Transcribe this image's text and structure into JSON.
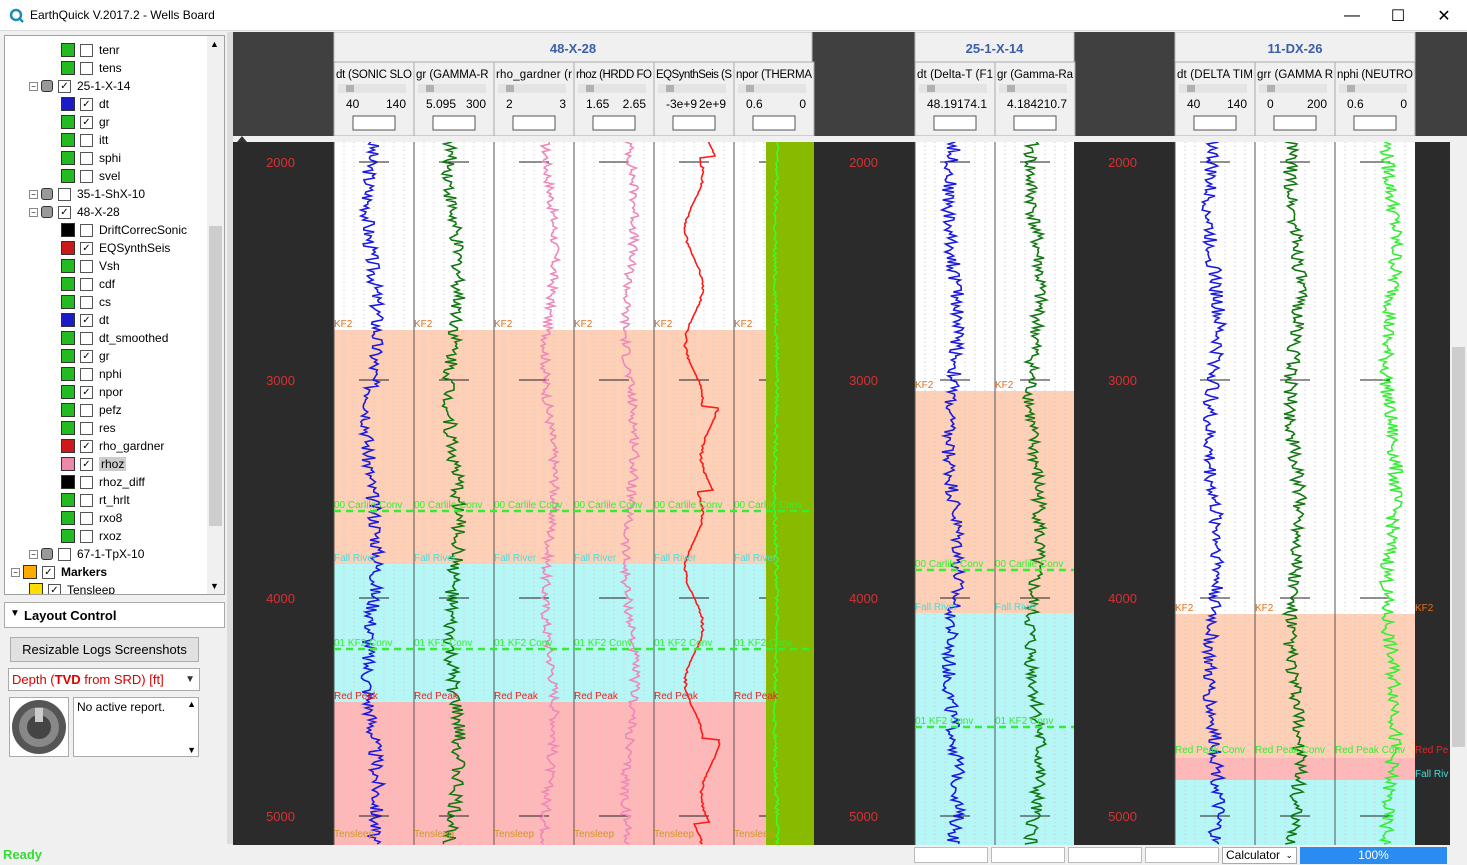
{
  "app": {
    "title": "EarthQuick V.2017.2 - Wells Board"
  },
  "window_controls": {
    "minimize": "—",
    "maximize": "☐",
    "close": "✕"
  },
  "tree": {
    "items": [
      {
        "label": "tenr",
        "checked": false,
        "color": "#22bb22",
        "indent": 3
      },
      {
        "label": "tens",
        "checked": false,
        "color": "#22bb22",
        "indent": 3
      },
      {
        "label": "25-1-X-14",
        "checked": true,
        "color": "#999999",
        "indent": 2,
        "well": true
      },
      {
        "label": "dt",
        "checked": true,
        "color": "#1a1ac8",
        "indent": 3
      },
      {
        "label": "gr",
        "checked": true,
        "color": "#22bb22",
        "indent": 3
      },
      {
        "label": "itt",
        "checked": false,
        "color": "#22bb22",
        "indent": 3
      },
      {
        "label": "sphi",
        "checked": false,
        "color": "#22bb22",
        "indent": 3
      },
      {
        "label": "svel",
        "checked": false,
        "color": "#22bb22",
        "indent": 3
      },
      {
        "label": "35-1-ShX-10",
        "checked": false,
        "color": "#999999",
        "indent": 2,
        "well": true
      },
      {
        "label": "48-X-28",
        "checked": true,
        "color": "#999999",
        "indent": 2,
        "well": true
      },
      {
        "label": "DriftCorrecSonic",
        "checked": false,
        "color": "#000000",
        "indent": 3
      },
      {
        "label": "EQSynthSeis",
        "checked": true,
        "color": "#cc1a1a",
        "indent": 3
      },
      {
        "label": "Vsh",
        "checked": false,
        "color": "#22bb22",
        "indent": 3
      },
      {
        "label": "cdf",
        "checked": false,
        "color": "#22bb22",
        "indent": 3
      },
      {
        "label": "cs",
        "checked": false,
        "color": "#22bb22",
        "indent": 3
      },
      {
        "label": "dt",
        "checked": true,
        "color": "#1a1ac8",
        "indent": 3
      },
      {
        "label": "dt_smoothed",
        "checked": false,
        "color": "#22bb22",
        "indent": 3
      },
      {
        "label": "gr",
        "checked": true,
        "color": "#22bb22",
        "indent": 3
      },
      {
        "label": "nphi",
        "checked": false,
        "color": "#22bb22",
        "indent": 3
      },
      {
        "label": "npor",
        "checked": true,
        "color": "#22bb22",
        "indent": 3
      },
      {
        "label": "pefz",
        "checked": false,
        "color": "#22bb22",
        "indent": 3
      },
      {
        "label": "res",
        "checked": false,
        "color": "#22bb22",
        "indent": 3
      },
      {
        "label": "rho_gardner",
        "checked": true,
        "color": "#cc1a1a",
        "indent": 3
      },
      {
        "label": "rhoz",
        "checked": true,
        "color": "#ee88aa",
        "indent": 3,
        "selected": true
      },
      {
        "label": "rhoz_diff",
        "checked": false,
        "color": "#000000",
        "indent": 3
      },
      {
        "label": "rt_hrlt",
        "checked": false,
        "color": "#22bb22",
        "indent": 3
      },
      {
        "label": "rxo8",
        "checked": false,
        "color": "#22bb22",
        "indent": 3
      },
      {
        "label": "rxoz",
        "checked": false,
        "color": "#22bb22",
        "indent": 3
      },
      {
        "label": "67-1-TpX-10",
        "checked": false,
        "color": "#999999",
        "indent": 2,
        "well": true
      },
      {
        "label": "Markers",
        "checked": true,
        "color": "#ffaa00",
        "indent": 1,
        "bold": true
      },
      {
        "label": "Tensleep",
        "checked": true,
        "color": "#ffdd00",
        "indent": 2
      }
    ]
  },
  "layout_control": {
    "title": "Layout Control",
    "button": "Resizable Logs Screenshots",
    "depth_prefix": "Depth (",
    "depth_bold": "TVD",
    "depth_suffix": " from SRD) [ft]",
    "report": "No active report."
  },
  "status": {
    "text": "Ready",
    "calculator": "Calculator",
    "zoom": "100%"
  },
  "depth_ticks": [
    "2000",
    "3000",
    "4000",
    "5000"
  ],
  "wells": [
    {
      "name": "48-X-28",
      "curves": [
        {
          "name": "dt (SONIC SLO",
          "min": "40",
          "max": "140"
        },
        {
          "name": "gr (GAMMA-R",
          "min": "5.095",
          "max": "300"
        },
        {
          "name": "rho_gardner (r",
          "min": "2",
          "max": "3"
        },
        {
          "name": "rhoz (HRDD FO",
          "min": "1.65",
          "max": "2.65"
        },
        {
          "name": "EQSynthSeis (S",
          "min": "-3e+9",
          "max": "2e+9"
        },
        {
          "name": "npor (THERMA",
          "min": "0.6",
          "max": "0"
        }
      ]
    },
    {
      "name": "25-1-X-14",
      "curves": [
        {
          "name": "dt (Delta-T (F1",
          "min": "48.19",
          "max": "174.1"
        },
        {
          "name": "gr (Gamma-Ra",
          "min": "4.184",
          "max": "210.7"
        }
      ]
    },
    {
      "name": "11-DX-26",
      "curves": [
        {
          "name": "dt (DELTA TIM",
          "min": "40",
          "max": "140"
        },
        {
          "name": "grr (GAMMA R",
          "min": "0",
          "max": "200"
        },
        {
          "name": "nphi (NEUTRO",
          "min": "0.6",
          "max": "0"
        }
      ]
    }
  ],
  "markers": {
    "kf2": "KF2",
    "carlile": "00 Carlile Conv",
    "fall_river": "Fall River",
    "kf2_conv": "01 KF2 Conv",
    "red_peak": "Red Peak",
    "tensleep": "Tensleep",
    "red_peak_conv": "Red Peak Conv",
    "red_pe": "Red Pe",
    "fall_riv": "Fall Riv"
  },
  "colors": {
    "kf2_zone": "#ffc8a8",
    "fall_zone": "#a8f4f4",
    "red_zone": "#ffaaaa",
    "dt": "#1a1ae0",
    "gr": "#117711",
    "rhoz": "#ee88bb",
    "seis": "#ff1a1a",
    "npor": "#88bb00",
    "nphi": "#33ee33",
    "depth_label": "#d43333"
  }
}
